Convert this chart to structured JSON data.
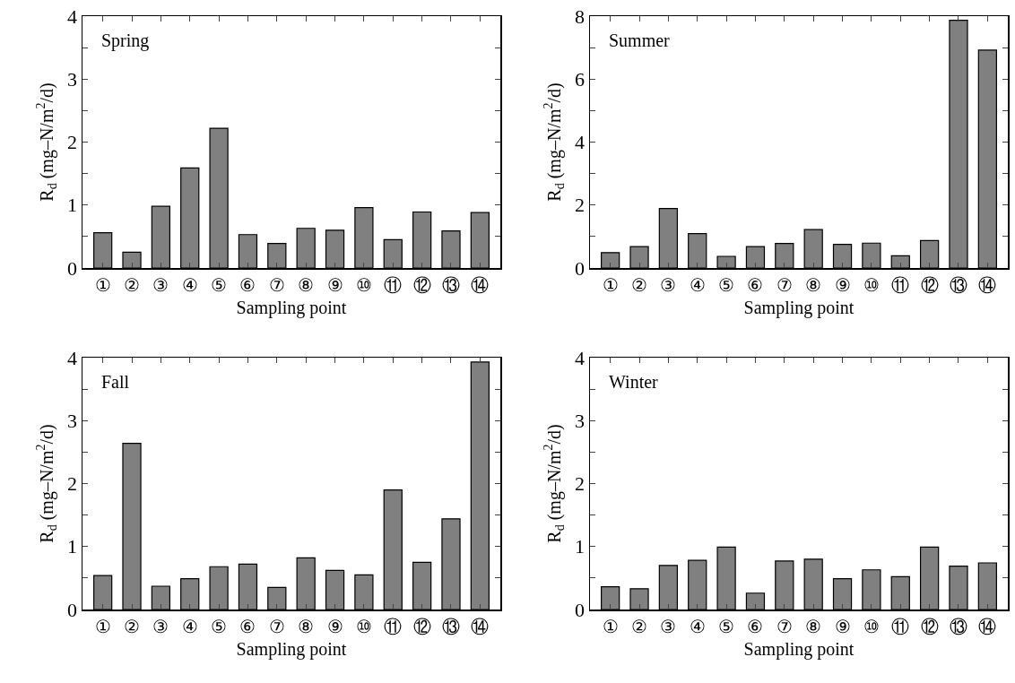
{
  "chart_data": [
    {
      "type": "bar",
      "annotations": [
        "Spring"
      ],
      "xlabel": "Sampling point",
      "ylabel": "R$_{d}$ (mg–N/m$^{2}$/d)",
      "categories": [
        "①",
        "②",
        "③",
        "④",
        "⑤",
        "⑥",
        "⑦",
        "⑧",
        "⑨",
        "⑩",
        "⑪",
        "⑫",
        "⑬",
        "⑭"
      ],
      "color": "#808080",
      "values": [
        0.56,
        0.25,
        0.98,
        1.59,
        2.22,
        0.53,
        0.39,
        0.63,
        0.6,
        0.96,
        0.45,
        0.89,
        0.59,
        0.88
      ],
      "ylim": [
        0,
        4
      ],
      "yticks": [
        0,
        {
          "value": 0.5,
          "label": null
        },
        1,
        {
          "value": 1.5,
          "label": null
        },
        2,
        {
          "value": 2.5,
          "label": null
        },
        3,
        {
          "value": 3.5,
          "label": null
        },
        4
      ],
      "grid": false
    },
    {
      "type": "bar",
      "annotations": [
        "Summer"
      ],
      "xlabel": "Sampling point",
      "ylabel": "R$_{d}$ (mg–N/m$^{2}$/d)",
      "categories": [
        "①",
        "②",
        "③",
        "④",
        "⑤",
        "⑥",
        "⑦",
        "⑧",
        "⑨",
        "⑩",
        "⑪",
        "⑫",
        "⑬",
        "⑭"
      ],
      "color": "#808080",
      "values": [
        0.49,
        0.68,
        1.89,
        1.09,
        0.37,
        0.68,
        0.78,
        1.22,
        0.75,
        0.79,
        0.39,
        0.87,
        7.87,
        6.92
      ],
      "ylim": [
        0,
        8
      ],
      "yticks": [
        0,
        {
          "value": 1,
          "label": null
        },
        2,
        {
          "value": 3,
          "label": null
        },
        4,
        {
          "value": 5,
          "label": null
        },
        6,
        {
          "value": 7,
          "label": null
        },
        8
      ],
      "grid": false
    },
    {
      "type": "bar",
      "annotations": [
        "Fall"
      ],
      "xlabel": "Sampling point",
      "ylabel": "R$_{d}$ (mg–N/m$^{2}$/d)",
      "categories": [
        "①",
        "②",
        "③",
        "④",
        "⑤",
        "⑥",
        "⑦",
        "⑧",
        "⑨",
        "⑩",
        "⑪",
        "⑫",
        "⑬",
        "⑭"
      ],
      "color": "#808080",
      "values": [
        0.54,
        2.64,
        0.37,
        0.49,
        0.68,
        0.72,
        0.35,
        0.82,
        0.62,
        0.55,
        1.9,
        0.75,
        1.44,
        3.93
      ],
      "ylim": [
        0,
        4
      ],
      "yticks": [
        0,
        {
          "value": 0.5,
          "label": null
        },
        1,
        {
          "value": 1.5,
          "label": null
        },
        2,
        {
          "value": 2.5,
          "label": null
        },
        3,
        {
          "value": 3.5,
          "label": null
        },
        4
      ],
      "grid": false
    },
    {
      "type": "bar",
      "annotations": [
        "Winter"
      ],
      "xlabel": "Sampling point",
      "ylabel": "R$_{d}$ (mg–N/m$^{2}$/d)",
      "categories": [
        "①",
        "②",
        "③",
        "④",
        "⑤",
        "⑥",
        "⑦",
        "⑧",
        "⑨",
        "⑩",
        "⑪",
        "⑫",
        "⑬",
        "⑭"
      ],
      "color": "#808080",
      "values": [
        0.36,
        0.33,
        0.7,
        0.78,
        0.99,
        0.26,
        0.77,
        0.8,
        0.49,
        0.63,
        0.52,
        0.99,
        0.69,
        0.74
      ],
      "ylim": [
        0,
        4
      ],
      "yticks": [
        0,
        {
          "value": 0.5,
          "label": null
        },
        1,
        {
          "value": 1.5,
          "label": null
        },
        2,
        {
          "value": 2.5,
          "label": null
        },
        3,
        {
          "value": 3.5,
          "label": null
        },
        4
      ],
      "grid": false
    }
  ]
}
